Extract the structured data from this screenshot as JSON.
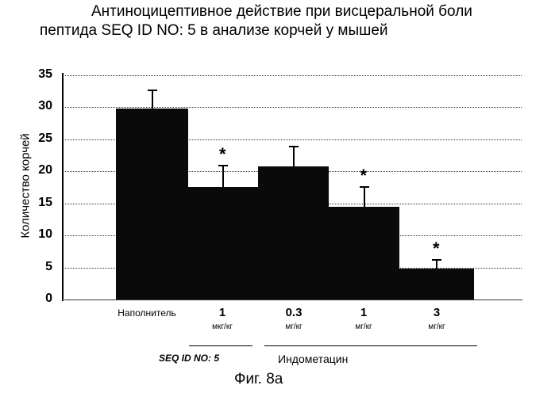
{
  "chart_data": {
    "type": "bar",
    "title": "Антиноцицептивное действие при висцеральной боли пептида SEQ ID NO: 5 в анализе корчей у мышей",
    "title_line1": "Антиноцицептивное действие при висцеральной боли",
    "title_line2": "пептида SEQ ID NO: 5 в анализе корчей у мышей",
    "xlabel": "",
    "ylabel": "Количество корчей",
    "ylim": [
      0,
      35
    ],
    "yticks": [
      "0",
      "5",
      "10",
      "15",
      "20",
      "25",
      "30",
      "35"
    ],
    "categories": [
      "Наполнитель",
      "1 мкг/кг",
      "0.3 мг/кг",
      "1 мг/кг",
      "3 мг/кг"
    ],
    "values": [
      29.7,
      17.5,
      20.8,
      14.5,
      4.8
    ],
    "errors": [
      3.0,
      3.5,
      3.2,
      3.2,
      1.5
    ],
    "significant": [
      false,
      true,
      false,
      true,
      true
    ],
    "groups": [
      {
        "label": "SEQ ID NO: 5",
        "categories": [
          "1 мкг/кг"
        ]
      },
      {
        "label": "Индометацин",
        "categories": [
          "0.3 мг/кг",
          "1 мг/кг",
          "3 мг/кг"
        ]
      }
    ],
    "grid": true,
    "figure_label": "Фиг. 8а"
  },
  "cats": [
    {
      "v": "Наполнитель",
      "u": ""
    },
    {
      "v": "1",
      "u": "мкг/кг"
    },
    {
      "v": "0.3",
      "u": "мг/кг"
    },
    {
      "v": "1",
      "u": "мг/кг"
    },
    {
      "v": "3",
      "u": "мг/кг"
    }
  ],
  "group_labels": {
    "seq": "SEQ ID NO: 5",
    "indo": "Индометацин"
  },
  "star": "*"
}
